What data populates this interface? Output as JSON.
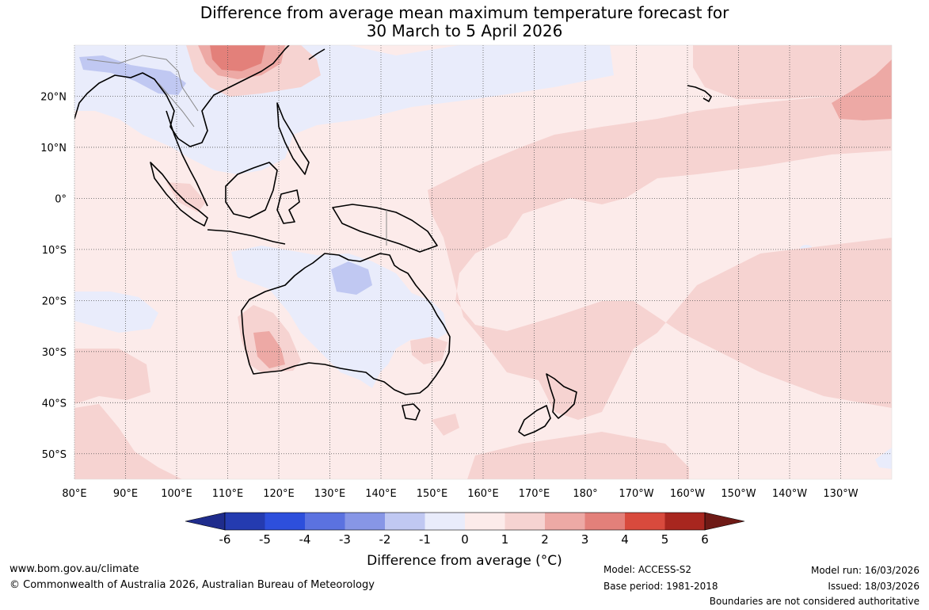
{
  "title": {
    "line1": "Difference from average mean maximum temperature forecast for",
    "line2": "30 March to 5 April 2026"
  },
  "map": {
    "x_labels": [
      "80°E",
      "90°E",
      "100°E",
      "110°E",
      "120°E",
      "130°E",
      "140°E",
      "150°E",
      "160°E",
      "170°E",
      "180°",
      "170°W",
      "160°W",
      "150°W",
      "140°W",
      "130°W"
    ],
    "y_labels": [
      "20°N",
      "10°N",
      "0°",
      "10°S",
      "20°S",
      "30°S",
      "40°S",
      "50°S"
    ],
    "lon_range": [
      80,
      240
    ],
    "lat_range": [
      -55,
      30
    ]
  },
  "colorbar": {
    "ticks": [
      "-6",
      "-5",
      "-4",
      "-3",
      "-2",
      "-1",
      "0",
      "1",
      "2",
      "3",
      "4",
      "5",
      "6"
    ],
    "colors": [
      "#1f2c8c",
      "#243bb0",
      "#2d4fdc",
      "#5b72e0",
      "#8796e6",
      "#c0c8f2",
      "#e9ecfb",
      "#fcebea",
      "#f6d3d1",
      "#eda9a5",
      "#e3807a",
      "#d84a3d",
      "#a8261f",
      "#6e1a16"
    ],
    "title": "Difference from average (°C)",
    "title_unit": "C"
  },
  "footer": {
    "url": "www.bom.gov.au/climate",
    "copyright": "© Commonwealth of Australia 2026, Australian Bureau of Meteorology",
    "model": "Model: ACCESS-S2",
    "base_period": "Base period: 1981-2018",
    "model_run": "Model run: 16/03/2026",
    "issued": "Issued: 18/03/2026",
    "disclaimer": "Boundaries are not considered authoritative"
  }
}
